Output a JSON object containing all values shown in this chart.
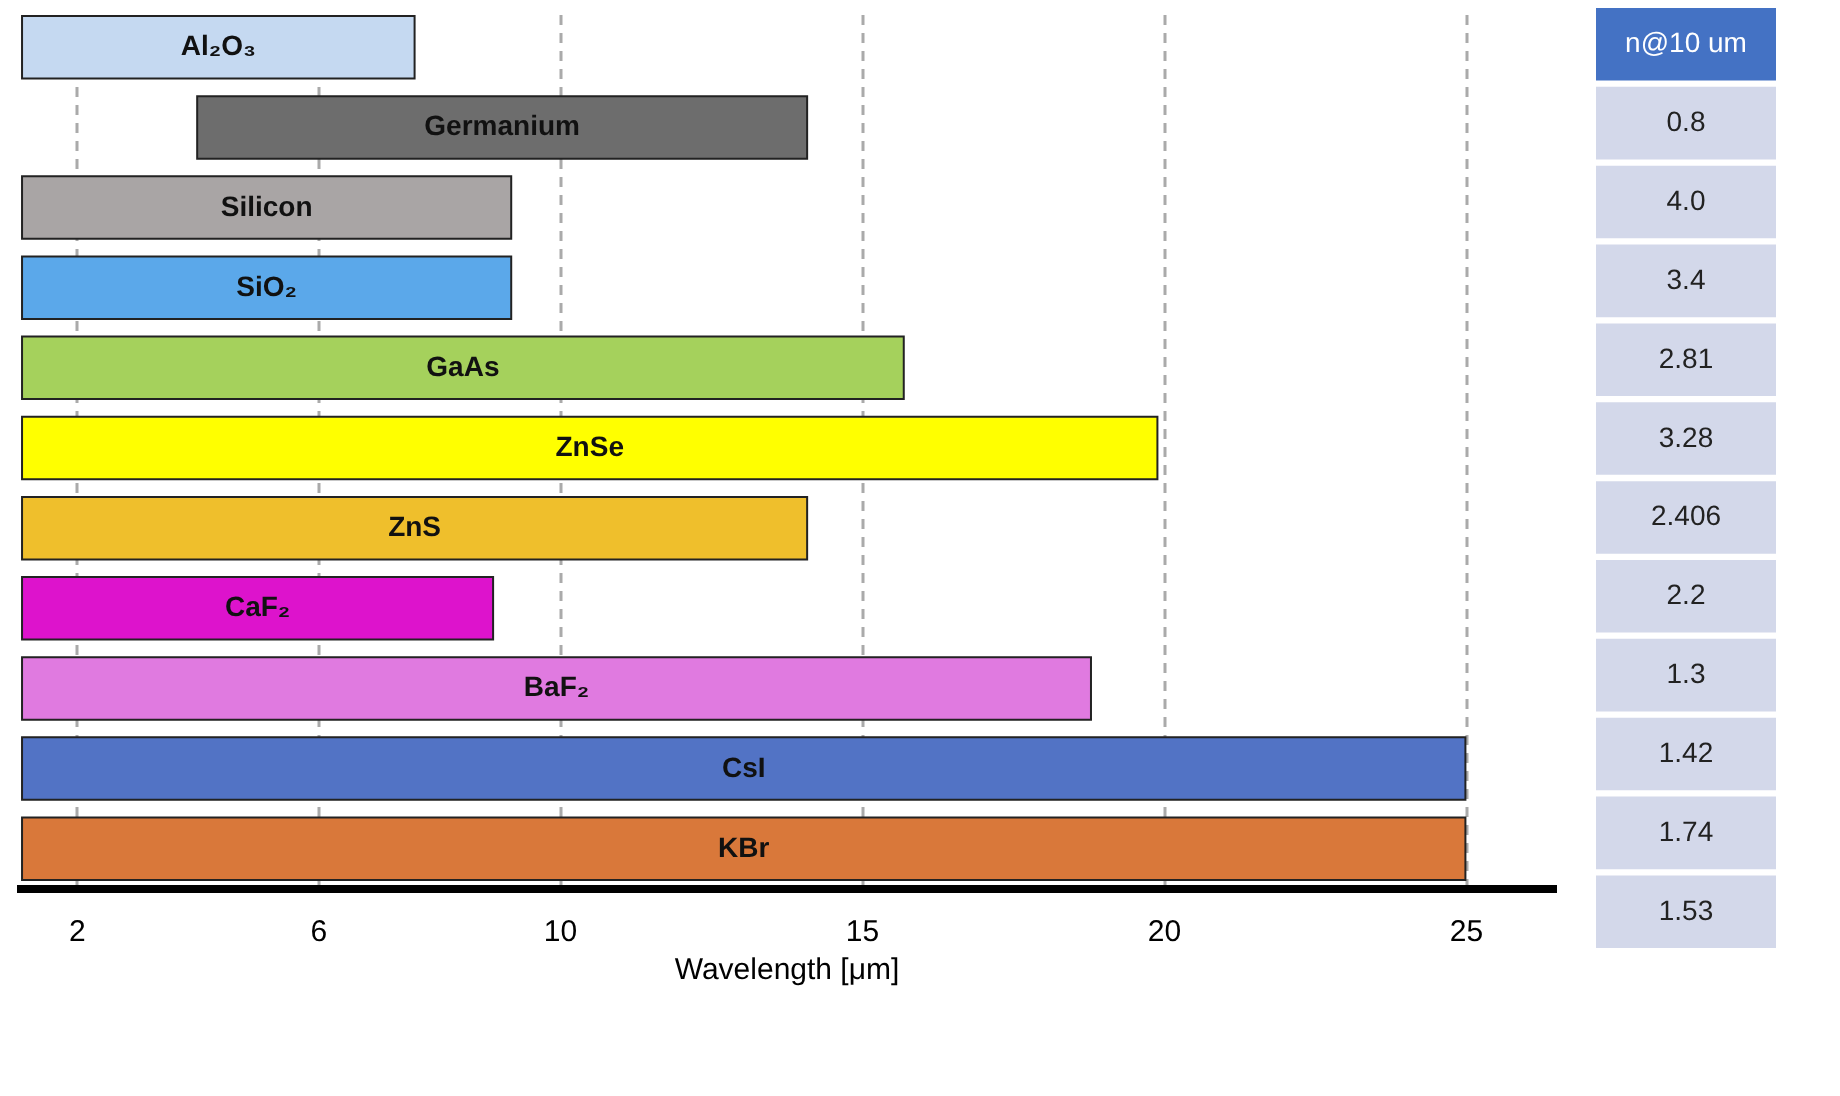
{
  "chart_data": [
    {
      "type": "bar",
      "orientation": "horizontal",
      "xlabel": "Wavelength [μm]",
      "categories": [
        "Al₂O₃",
        "Germanium",
        "Silicon",
        "SiO₂",
        "GaAs",
        "ZnSe",
        "ZnS",
        "CaF₂",
        "BaF₂",
        "CsI",
        "KBr"
      ],
      "base": [
        1.1,
        4.0,
        1.1,
        1.1,
        1.1,
        1.1,
        1.1,
        1.1,
        1.1,
        1.1,
        1.1
      ],
      "values": [
        6.5,
        10.1,
        8.1,
        8.1,
        14.6,
        18.8,
        13.0,
        7.8,
        17.7,
        23.9,
        23.9
      ],
      "colors": [
        "#c5d9f1",
        "#6d6d6d",
        "#a9a5a5",
        "#5ba8ea",
        "#a5d15c",
        "#ffff00",
        "#efbf2c",
        "#dd13cc",
        "#e07ae0",
        "#5273c5",
        "#d9783a"
      ],
      "xlim": [
        1,
        26.5
      ],
      "xticks": [
        2,
        6,
        10,
        15,
        20,
        25
      ],
      "grid": "x",
      "tick_labels": "x"
    },
    {
      "type": "other",
      "title": "n@10 um",
      "annotations": [
        "0.8",
        "4.0",
        "3.4",
        "2.81",
        "3.28",
        "2.406",
        "2.2",
        "1.3",
        "1.42",
        "1.74",
        "1.53"
      ]
    }
  ]
}
